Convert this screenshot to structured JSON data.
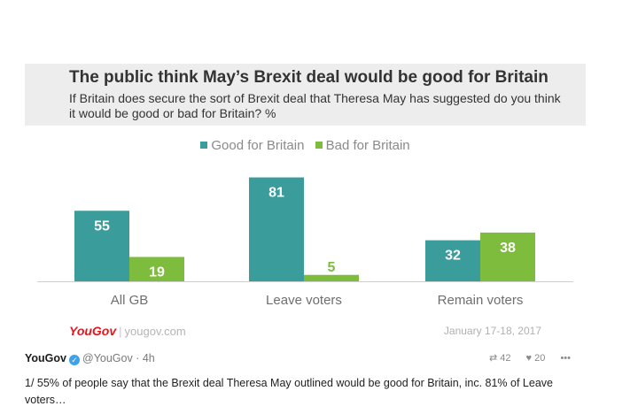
{
  "chart_data": {
    "type": "bar",
    "title": "The public think May’s Brexit deal would be good for Britain",
    "subtitle": "If Britain does secure the sort of Brexit deal that Theresa May has suggested do you think it would be good or bad for Britain? %",
    "categories": [
      "All GB",
      "Leave voters",
      "Remain voters"
    ],
    "series": [
      {
        "name": "Good for Britain",
        "values": [
          55,
          81,
          32
        ],
        "color": "#3a9d9b"
      },
      {
        "name": "Bad for Britain",
        "values": [
          19,
          5,
          38
        ],
        "color": "#7dbc3d"
      }
    ],
    "ylim": [
      0,
      100
    ],
    "xlabel": "",
    "ylabel": "",
    "grid": false,
    "legend_position": "top"
  },
  "source": {
    "brand": "YouGov",
    "url": "yougov.com",
    "date": "January 17-18, 2017"
  },
  "tweet": {
    "name": "YouGov",
    "handle": "@YouGov",
    "time": "· 4h",
    "retweets": "42",
    "likes": "20",
    "more": "•••",
    "retweet_icon": "retweet-icon",
    "like_icon": "heart-icon",
    "text": "1/ 55% of people say that the Brexit deal Theresa May outlined would be good for Britain, inc. 81% of Leave voters…"
  }
}
